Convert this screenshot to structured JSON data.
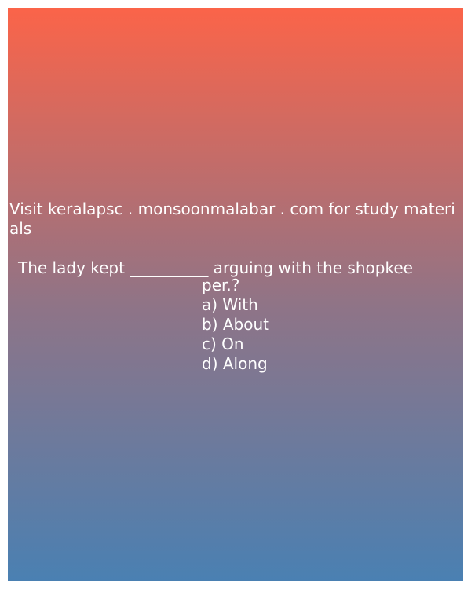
{
  "promo_text": "Visit keralapsc . monsoonmalabar . com for study materials",
  "question": {
    "line_1": "The lady kept __________ arguing with the shopkee",
    "line_2": "per.?"
  },
  "options": [
    "a) With",
    "b) About",
    "c) On",
    "d) Along"
  ],
  "colors": {
    "gradient_top": "#fb6449",
    "gradient_middle": "#8f7487",
    "gradient_bottom": "#4a80b2",
    "text": "#ffffff"
  }
}
